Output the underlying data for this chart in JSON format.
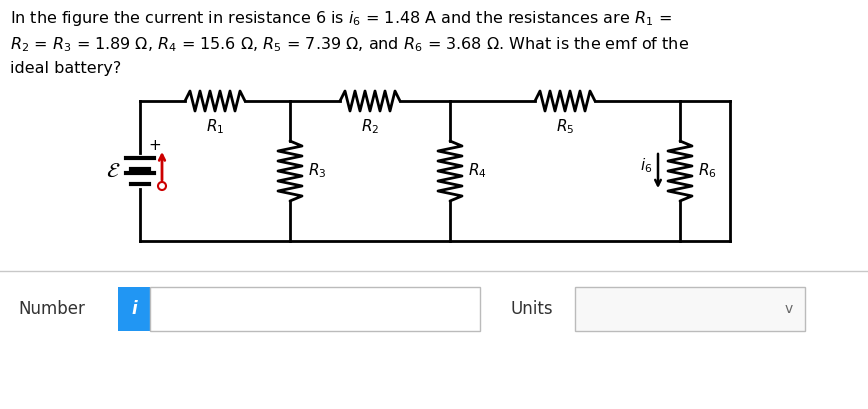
{
  "bg_color": "#ffffff",
  "line_color": "#000000",
  "title_line1": "In the figure the current in resistance 6 is $i_6$ = 1.48 A and the resistances are $R_1$ =",
  "title_line2": "$R_2$ = $R_3$ = 1.89 $\\Omega$, $R_4$ = 15.6 $\\Omega$, $R_5$ = 7.39 $\\Omega$, and $R_6$ = 3.68 $\\Omega$. What is the emf of the",
  "title_line3": "ideal battery?",
  "number_label": "Number",
  "units_label": "Units",
  "number_box_color": "#2196F3",
  "number_box_border": "#cccccc",
  "input_box_border": "#cccccc",
  "input_box_bg": "#ffffff",
  "units_box_bg": "#f8f8f8",
  "arrow_color": "#cc0000",
  "sep_color": "#c8c8c8"
}
